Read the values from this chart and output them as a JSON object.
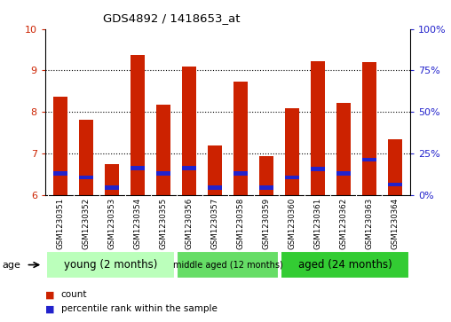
{
  "title": "GDS4892 / 1418653_at",
  "samples": [
    "GSM1230351",
    "GSM1230352",
    "GSM1230353",
    "GSM1230354",
    "GSM1230355",
    "GSM1230356",
    "GSM1230357",
    "GSM1230358",
    "GSM1230359",
    "GSM1230360",
    "GSM1230361",
    "GSM1230362",
    "GSM1230363",
    "GSM1230364"
  ],
  "count_values": [
    8.37,
    7.8,
    6.75,
    9.38,
    8.18,
    9.1,
    7.18,
    8.73,
    6.93,
    8.08,
    9.22,
    8.22,
    9.2,
    7.35
  ],
  "percentile_values": [
    6.52,
    6.42,
    6.18,
    6.65,
    6.52,
    6.65,
    6.18,
    6.52,
    6.18,
    6.42,
    6.63,
    6.52,
    6.85,
    6.25
  ],
  "ylim_left": [
    6.0,
    10.0
  ],
  "ylim_right": [
    0,
    100
  ],
  "yticks_left": [
    6,
    7,
    8,
    9,
    10
  ],
  "yticks_right": [
    0,
    25,
    50,
    75,
    100
  ],
  "groups": [
    {
      "label": "young (2 months)",
      "start": 0,
      "end": 5,
      "color": "#bbffbb",
      "text_size": 8.5
    },
    {
      "label": "middle aged (12 months)",
      "start": 5,
      "end": 9,
      "color": "#66dd66",
      "text_size": 7.0
    },
    {
      "label": "aged (24 months)",
      "start": 9,
      "end": 14,
      "color": "#33cc33",
      "text_size": 8.5
    }
  ],
  "bar_width": 0.55,
  "count_color": "#cc2200",
  "percentile_color": "#2222cc",
  "bar_bottom": 6.0,
  "grid_color": "#000000",
  "grid_ticks": [
    7,
    8,
    9
  ],
  "left_tick_color": "#cc2200",
  "right_tick_color": "#2222cc",
  "legend_count": "count",
  "legend_percentile": "percentile rank within the sample",
  "xlabels_bg": "#cccccc",
  "age_label": "age"
}
